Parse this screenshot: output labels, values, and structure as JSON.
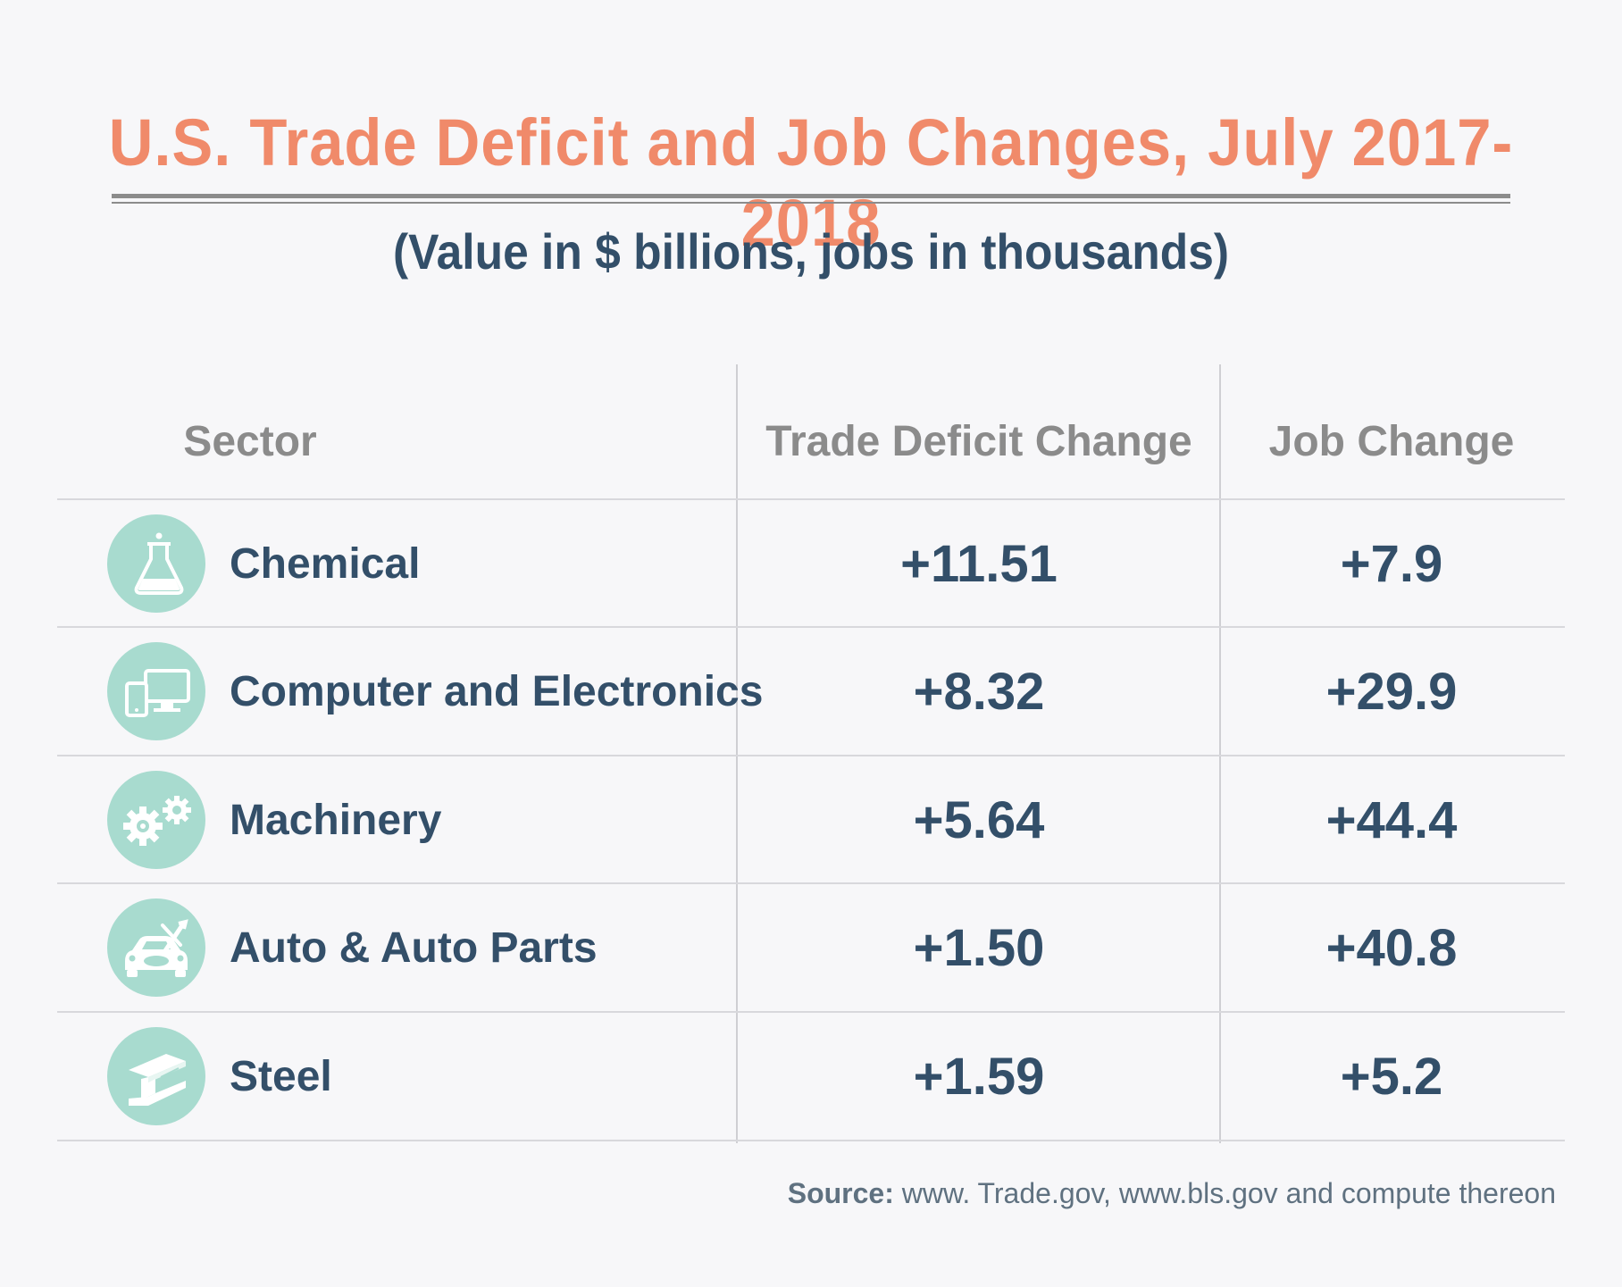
{
  "title": "U.S. Trade Deficit and Job Changes, July 2017-2018",
  "subtitle": "(Value in $ billions, jobs in thousands)",
  "headers": {
    "sector": "Sector",
    "trade": "Trade Deficit Change",
    "job": "Job Change"
  },
  "rows": [
    {
      "sector": "Chemical",
      "trade": "+11.51",
      "job": "+7.9",
      "icon": "flask-icon"
    },
    {
      "sector": "Computer and Electronics",
      "trade": "+8.32",
      "job": "+29.9",
      "icon": "computer-devices-icon"
    },
    {
      "sector": "Machinery",
      "trade": "+5.64",
      "job": "+44.4",
      "icon": "gears-icon"
    },
    {
      "sector": "Auto & Auto Parts",
      "trade": "+1.50",
      "job": "+40.8",
      "icon": "car-tools-icon"
    },
    {
      "sector": "Steel",
      "trade": "+1.59",
      "job": "+5.2",
      "icon": "steel-beam-icon"
    }
  ],
  "source": {
    "label": "Source:",
    "text": " www. Trade.gov, www.bls.gov and compute thereon"
  },
  "colors": {
    "title": "#f08a6a",
    "text": "#334f69",
    "header": "#8b8b8b",
    "icon_bg": "#a8dbcf",
    "background": "#f7f7f9"
  },
  "chart_data": {
    "type": "table",
    "title": "U.S. Trade Deficit and Job Changes, July 2017-2018",
    "subtitle": "(Value in $ billions, jobs in thousands)",
    "columns": [
      "Sector",
      "Trade Deficit Change",
      "Job Change"
    ],
    "rows": [
      [
        "Chemical",
        11.51,
        7.9
      ],
      [
        "Computer and Electronics",
        8.32,
        29.9
      ],
      [
        "Machinery",
        5.64,
        44.4
      ],
      [
        "Auto & Auto Parts",
        1.5,
        40.8
      ],
      [
        "Steel",
        1.59,
        5.2
      ]
    ]
  }
}
